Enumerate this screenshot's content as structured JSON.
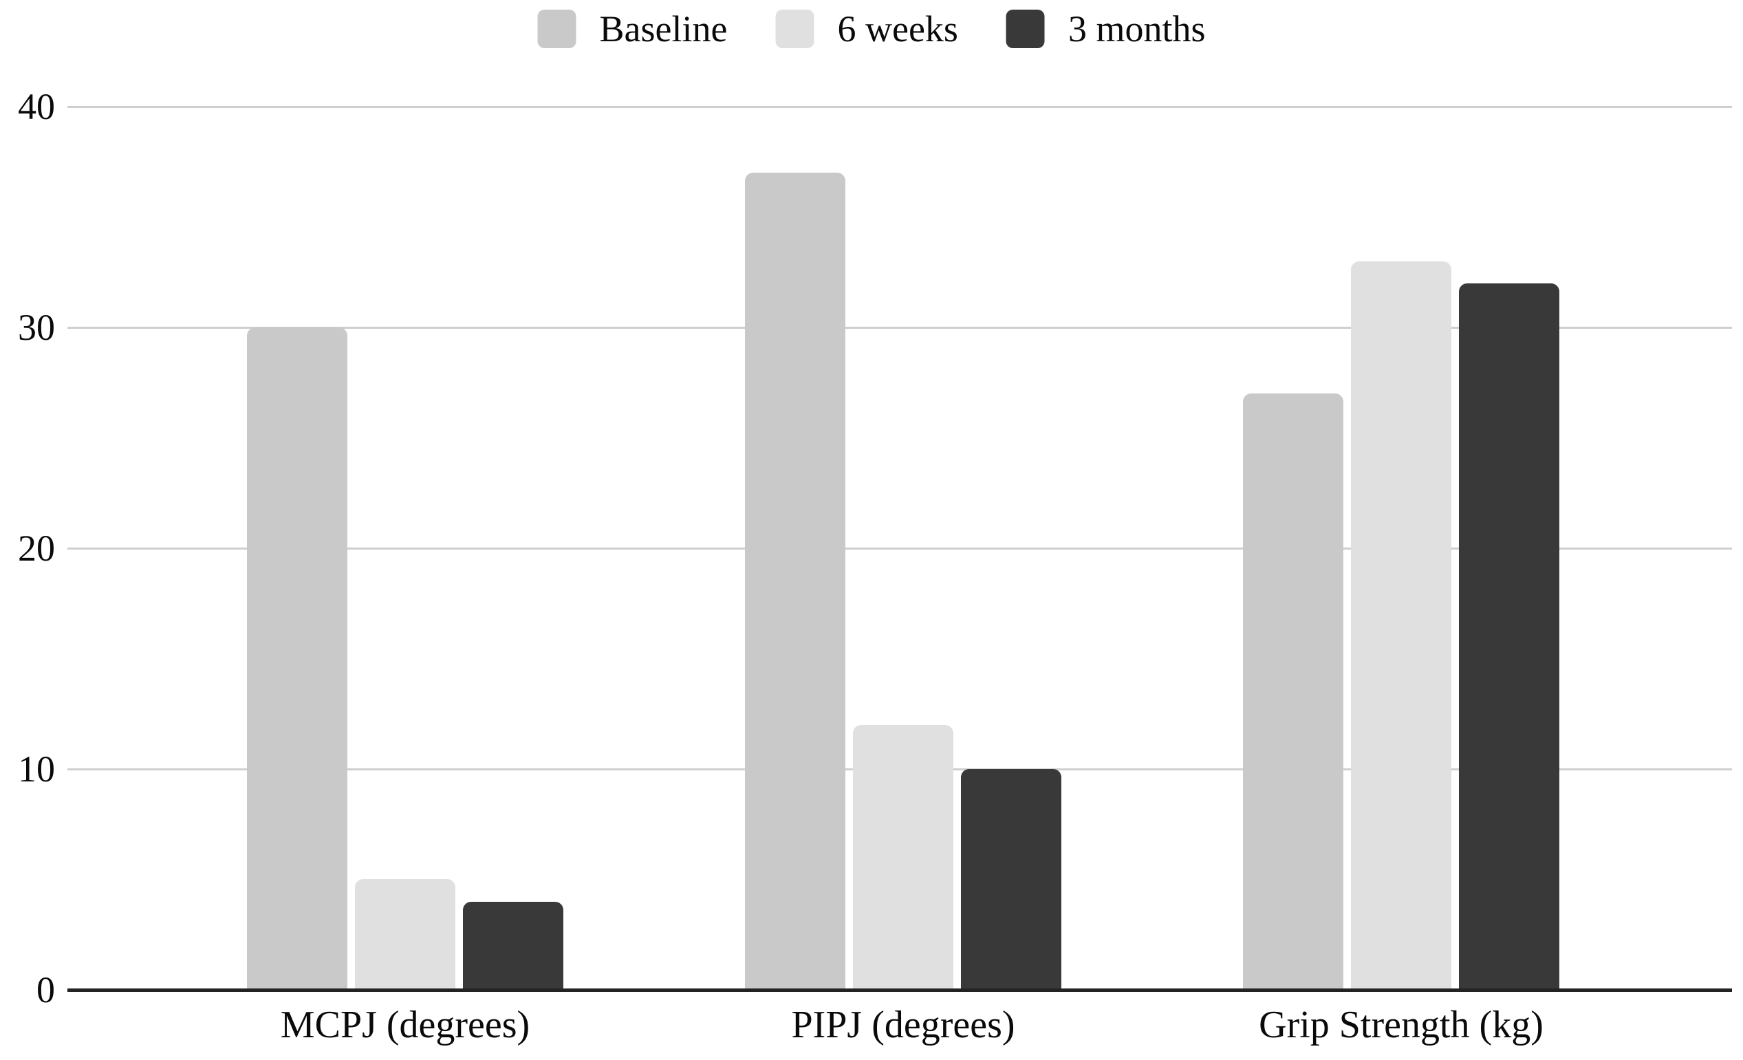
{
  "chart_data": {
    "type": "bar",
    "title": "",
    "xlabel": "",
    "ylabel": "",
    "categories": [
      "MCPJ (degrees)",
      "PIPJ (degrees)",
      "Grip Strength (kg)"
    ],
    "series": [
      {
        "name": "Baseline",
        "color": "#c9c9c9",
        "values": [
          30,
          37,
          27
        ]
      },
      {
        "name": "6 weeks",
        "color": "#e0e0e0",
        "values": [
          5,
          12,
          33
        ]
      },
      {
        "name": "3 months",
        "color": "#393939",
        "values": [
          4,
          10,
          32
        ]
      }
    ],
    "ylim": [
      0,
      40
    ],
    "yticks": [
      0,
      10,
      20,
      30,
      40
    ],
    "grid": true,
    "legend_position": "top-center",
    "colors": {
      "background": "#ffffff",
      "gridline": "#cfcfcf",
      "axis_line": "#232323",
      "text": "#0a0a0a"
    }
  }
}
